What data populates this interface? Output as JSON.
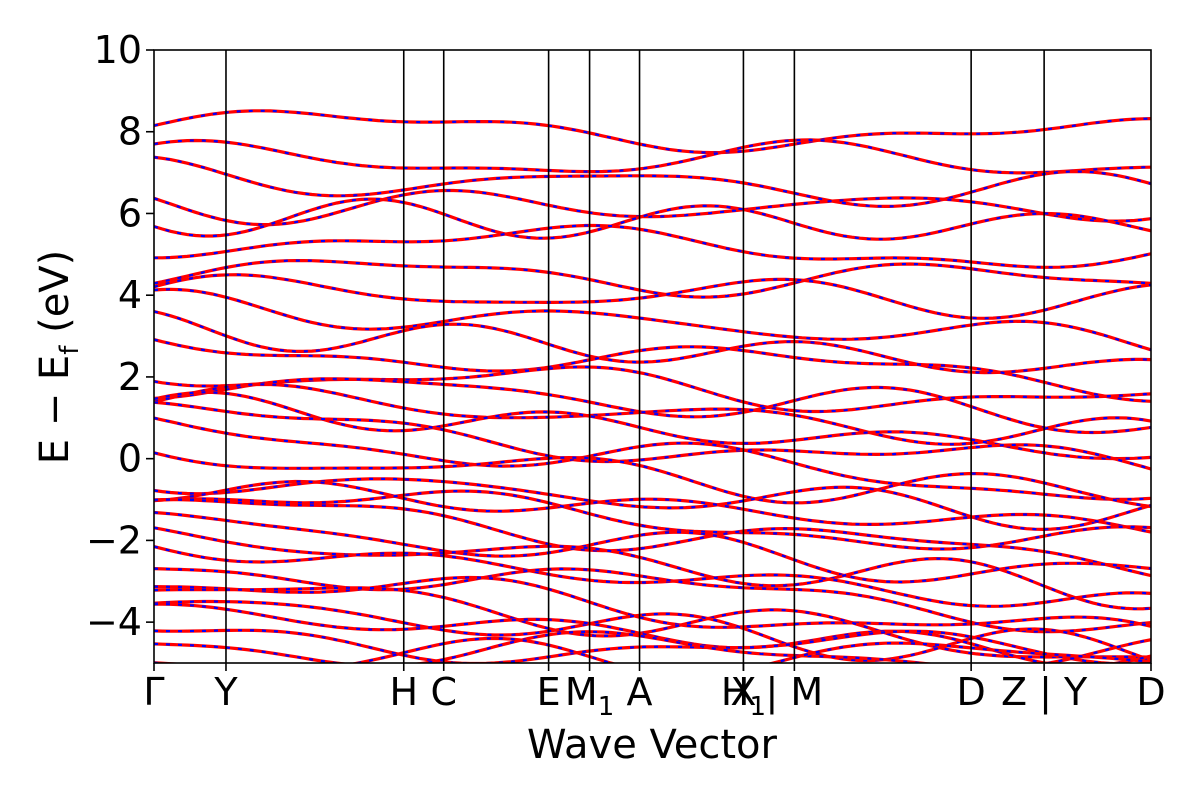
{
  "chart_data": {
    "type": "line",
    "title": "",
    "xlabel": "Wave Vector",
    "ylabel": "E − E",
    "ylabel_subscript": "f",
    "ylabel_suffix": " (eV)",
    "ylim": [
      -5,
      10
    ],
    "yticks": [
      -4,
      -2,
      0,
      2,
      4,
      6,
      8,
      10
    ],
    "xlim": [
      0,
      1.0
    ],
    "kpoints": [
      {
        "label": "Γ",
        "sub": "",
        "x": 0.0
      },
      {
        "label": "Y",
        "sub": "",
        "x": 0.0722
      },
      {
        "label": "H",
        "sub": "",
        "x": 0.2505
      },
      {
        "label": "C",
        "sub": "",
        "x": 0.2906
      },
      {
        "label": "E",
        "sub": "",
        "x": 0.3958
      },
      {
        "label": "M",
        "sub": "1",
        "x": 0.4369
      },
      {
        "label": "A",
        "sub": "",
        "x": 0.487
      },
      {
        "label": "X",
        "sub": "",
        "x": 0.5912
      },
      {
        "label": "H",
        "sub": "1",
        "x": 0.5912
      },
      {
        "label": "| M",
        "sub": "",
        "x": 0.6423
      },
      {
        "label": "D",
        "sub": "",
        "x": 0.8196
      },
      {
        "label": "Z | Y",
        "sub": "",
        "x": 0.8928
      },
      {
        "label": "D",
        "sub": "",
        "x": 1.0
      }
    ],
    "separators": [
      0.0722,
      0.2505,
      0.2906,
      0.3958,
      0.4369,
      0.487,
      0.5912,
      0.6423,
      0.8196,
      0.8928
    ],
    "series_styles": [
      {
        "name": "band structure (solid)",
        "color": "#ff0000"
      },
      {
        "name": "band structure (dashed)",
        "color": "#0000ff"
      }
    ],
    "band_energies_at_gamma": [
      8.15,
      7.3,
      6.9,
      6.2,
      5.95,
      5.4,
      4.6,
      4.1,
      3.7,
      3.2,
      2.85,
      2.2,
      1.9,
      1.6,
      1.3,
      1.0,
      0.7,
      0.15,
      -0.5,
      -0.7,
      -0.9,
      -1.15,
      -1.6,
      -1.9,
      -2.15,
      -2.5,
      -2.9,
      -3.1,
      -3.6,
      -3.75,
      -4.4,
      -4.6,
      -4.9
    ],
    "band_energies_at_D": [
      7.85,
      7.3,
      6.5,
      6.15,
      5.65,
      5.0,
      4.3,
      3.9,
      2.9,
      2.2,
      1.9,
      1.3,
      1.0,
      0.5,
      0.15,
      -0.3,
      -0.8,
      -1.0,
      -1.35,
      -1.7,
      -2.1,
      -2.5,
      -2.9,
      -3.2,
      -3.6,
      -3.9,
      -4.4,
      -4.8
    ]
  }
}
